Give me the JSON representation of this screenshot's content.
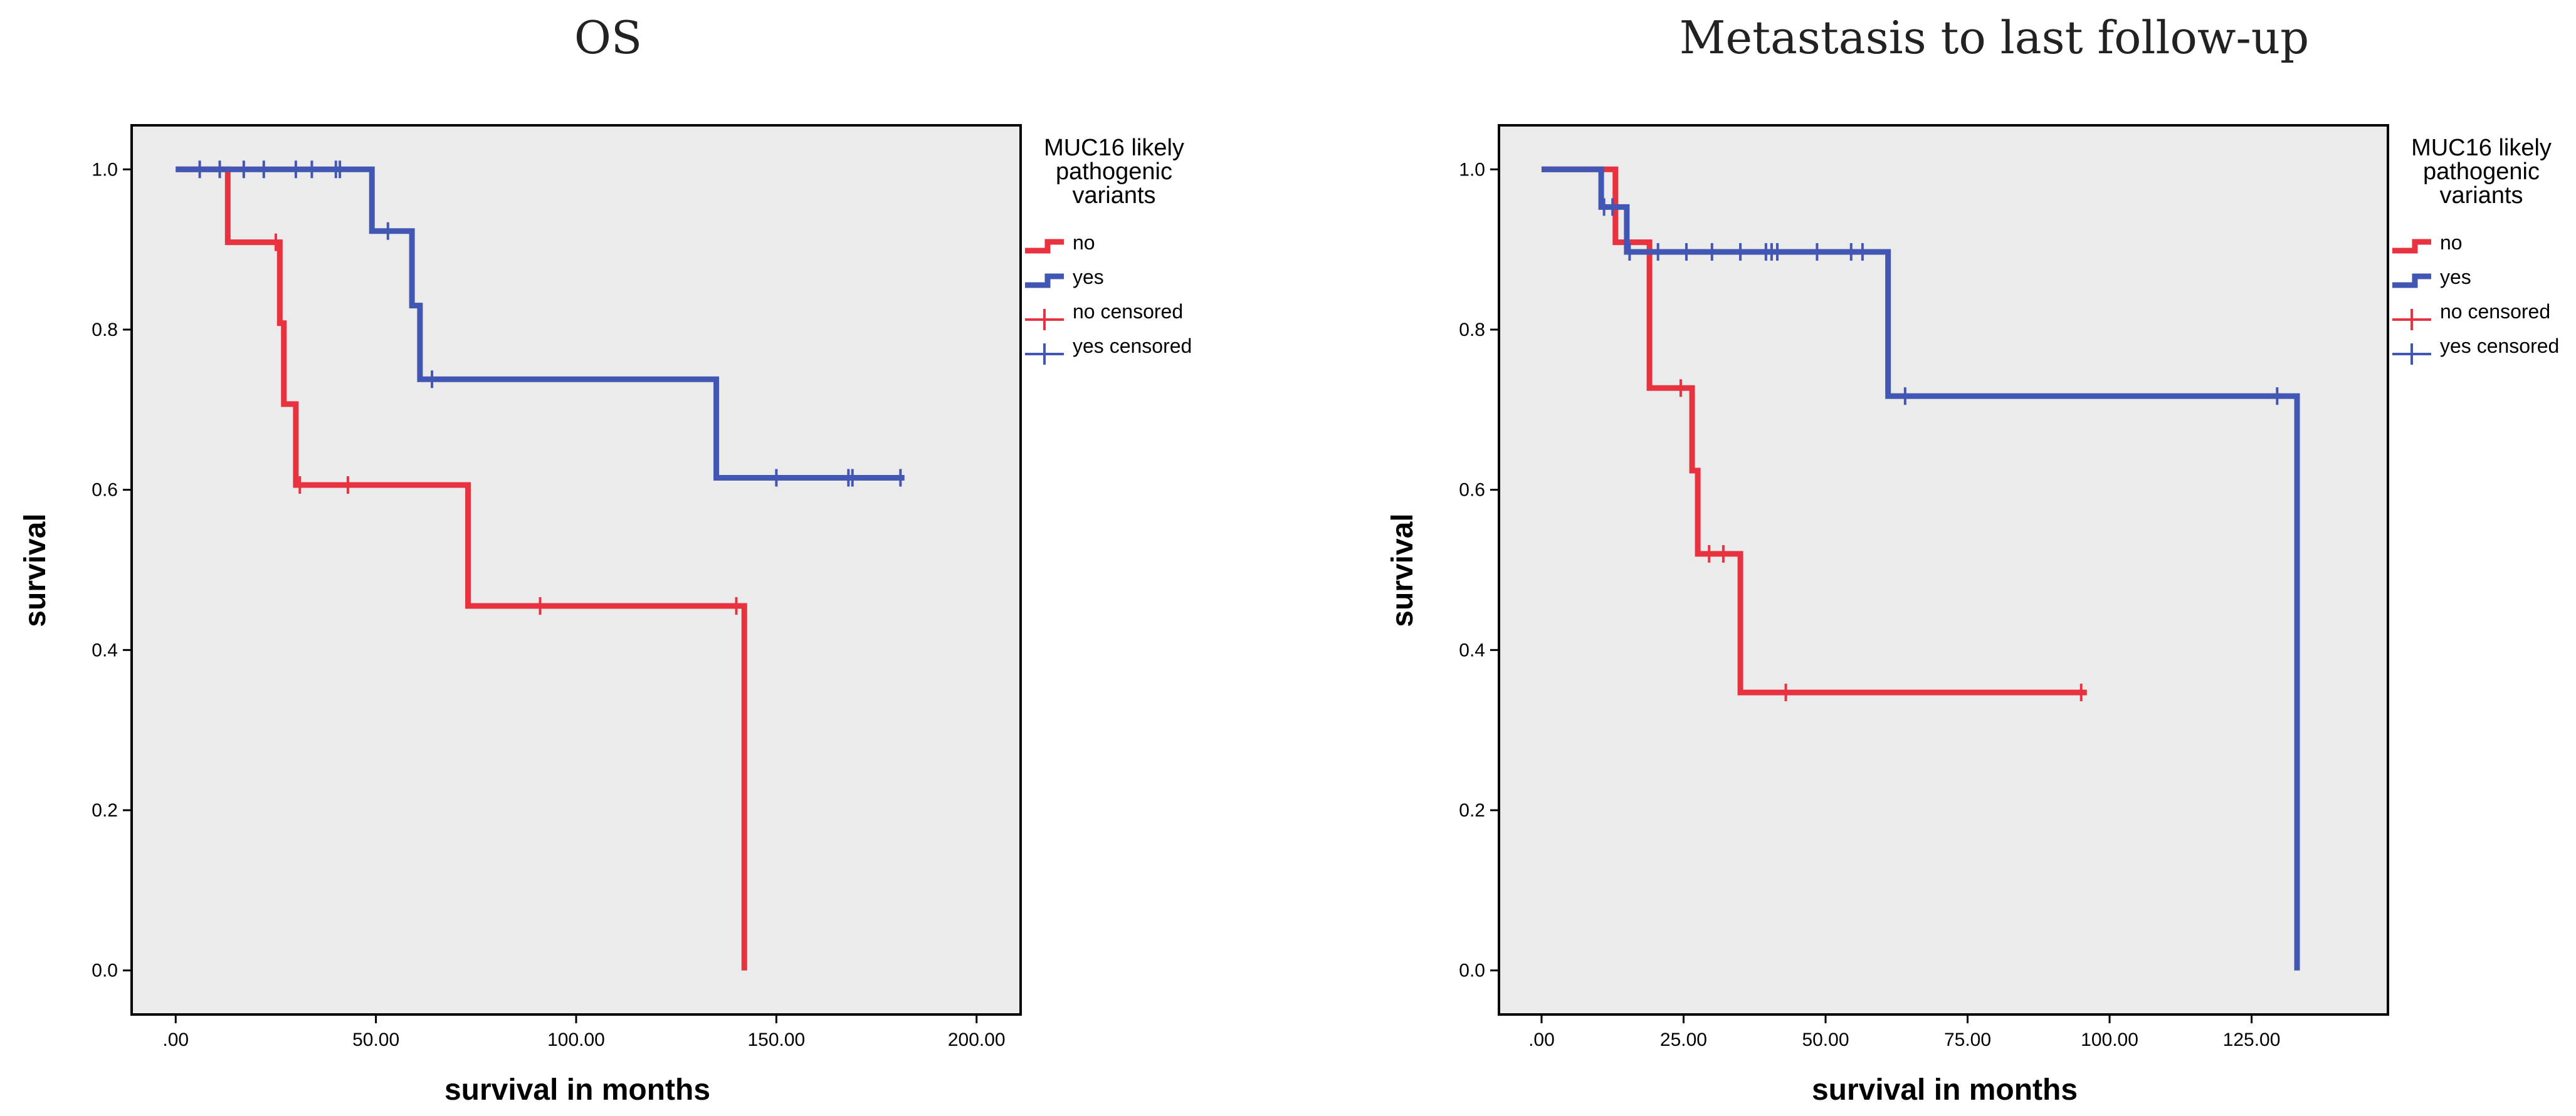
{
  "legend": {
    "title_lines": [
      "MUC16 likely",
      "pathogenic",
      "variants"
    ],
    "entries": [
      {
        "label": "no",
        "kind": "line",
        "series": 0
      },
      {
        "label": "yes",
        "kind": "line",
        "series": 1
      },
      {
        "label": "no censored",
        "kind": "censor",
        "series": 0
      },
      {
        "label": "yes censored",
        "kind": "censor",
        "series": 1
      }
    ]
  },
  "colors": {
    "no": "#e8323f",
    "yes": "#4256b3",
    "plot_bg": "#ebebeb",
    "frame": "#000000"
  },
  "chart_data": [
    {
      "type": "line",
      "subtype": "kaplan-meier",
      "title": "OS",
      "xlabel": "survival in months",
      "ylabel": "survival",
      "xlim": [
        -11,
        211
      ],
      "ylim": [
        -0.055,
        1.055
      ],
      "xticks": [
        0,
        50,
        100,
        150,
        200
      ],
      "xtick_labels": [
        ".00",
        "50.00",
        "100.00",
        "150.00",
        "200.00"
      ],
      "yticks": [
        0,
        0.2,
        0.4,
        0.6,
        0.8,
        1.0
      ],
      "ytick_labels": [
        "0.0",
        "0.2",
        "0.4",
        "0.6",
        "0.8",
        "1.0"
      ],
      "grid": false,
      "legend_position": "right",
      "series": [
        {
          "name": "no",
          "steps": [
            [
              0,
              1.0
            ],
            [
              13,
              0.909
            ],
            [
              26,
              0.808
            ],
            [
              27,
              0.707
            ],
            [
              30,
              0.606
            ],
            [
              73,
              0.455
            ],
            [
              142,
              0.0
            ]
          ],
          "end_x": 142,
          "censored": [
            [
              25,
              0.909
            ],
            [
              31,
              0.606
            ],
            [
              43,
              0.606
            ],
            [
              91,
              0.455
            ],
            [
              140,
              0.455
            ]
          ]
        },
        {
          "name": "yes",
          "steps": [
            [
              0,
              1.0
            ],
            [
              49,
              0.923
            ],
            [
              59,
              0.83
            ],
            [
              61,
              0.738
            ],
            [
              135,
              0.615
            ]
          ],
          "end_x": 182,
          "censored": [
            [
              6,
              1.0
            ],
            [
              11,
              1.0
            ],
            [
              17,
              1.0
            ],
            [
              22,
              1.0
            ],
            [
              30,
              1.0
            ],
            [
              34,
              1.0
            ],
            [
              40,
              1.0
            ],
            [
              41,
              1.0
            ],
            [
              53,
              0.923
            ],
            [
              64,
              0.738
            ],
            [
              150,
              0.615
            ],
            [
              168,
              0.615
            ],
            [
              169,
              0.615
            ],
            [
              181,
              0.615
            ]
          ]
        }
      ]
    },
    {
      "type": "line",
      "subtype": "kaplan-meier",
      "title": "Metastasis to last follow-up",
      "xlabel": "survival in months",
      "ylabel": "survival",
      "xlim": [
        -7.5,
        149
      ],
      "ylim": [
        -0.055,
        1.055
      ],
      "xticks": [
        0,
        25,
        50,
        75,
        100,
        125
      ],
      "xtick_labels": [
        ".00",
        "25.00",
        "50.00",
        "75.00",
        "100.00",
        "125.00"
      ],
      "yticks": [
        0,
        0.2,
        0.4,
        0.6,
        0.8,
        1.0
      ],
      "ytick_labels": [
        "0.0",
        "0.2",
        "0.4",
        "0.6",
        "0.8",
        "1.0"
      ],
      "grid": false,
      "legend_position": "right",
      "series": [
        {
          "name": "no",
          "steps": [
            [
              0,
              1.0
            ],
            [
              13,
              0.909
            ],
            [
              19,
              0.727
            ],
            [
              26.5,
              0.624
            ],
            [
              27.5,
              0.52
            ],
            [
              35,
              0.347
            ]
          ],
          "end_x": 96,
          "censored": [
            [
              24.5,
              0.727
            ],
            [
              29.5,
              0.52
            ],
            [
              32,
              0.52
            ],
            [
              43,
              0.347
            ],
            [
              95,
              0.347
            ]
          ]
        },
        {
          "name": "yes",
          "steps": [
            [
              0,
              1.0
            ],
            [
              10.5,
              0.953
            ],
            [
              15,
              0.897
            ],
            [
              61,
              0.717
            ],
            [
              133,
              0.0
            ]
          ],
          "end_x": 133,
          "censored": [
            [
              11,
              0.953
            ],
            [
              12.5,
              0.953
            ],
            [
              15.5,
              0.897
            ],
            [
              20.5,
              0.897
            ],
            [
              25.5,
              0.897
            ],
            [
              30,
              0.897
            ],
            [
              35,
              0.897
            ],
            [
              39.5,
              0.897
            ],
            [
              40.5,
              0.897
            ],
            [
              41.5,
              0.897
            ],
            [
              48.5,
              0.897
            ],
            [
              54.5,
              0.897
            ],
            [
              56.5,
              0.897
            ],
            [
              64,
              0.717
            ],
            [
              129.5,
              0.717
            ]
          ]
        }
      ]
    }
  ]
}
